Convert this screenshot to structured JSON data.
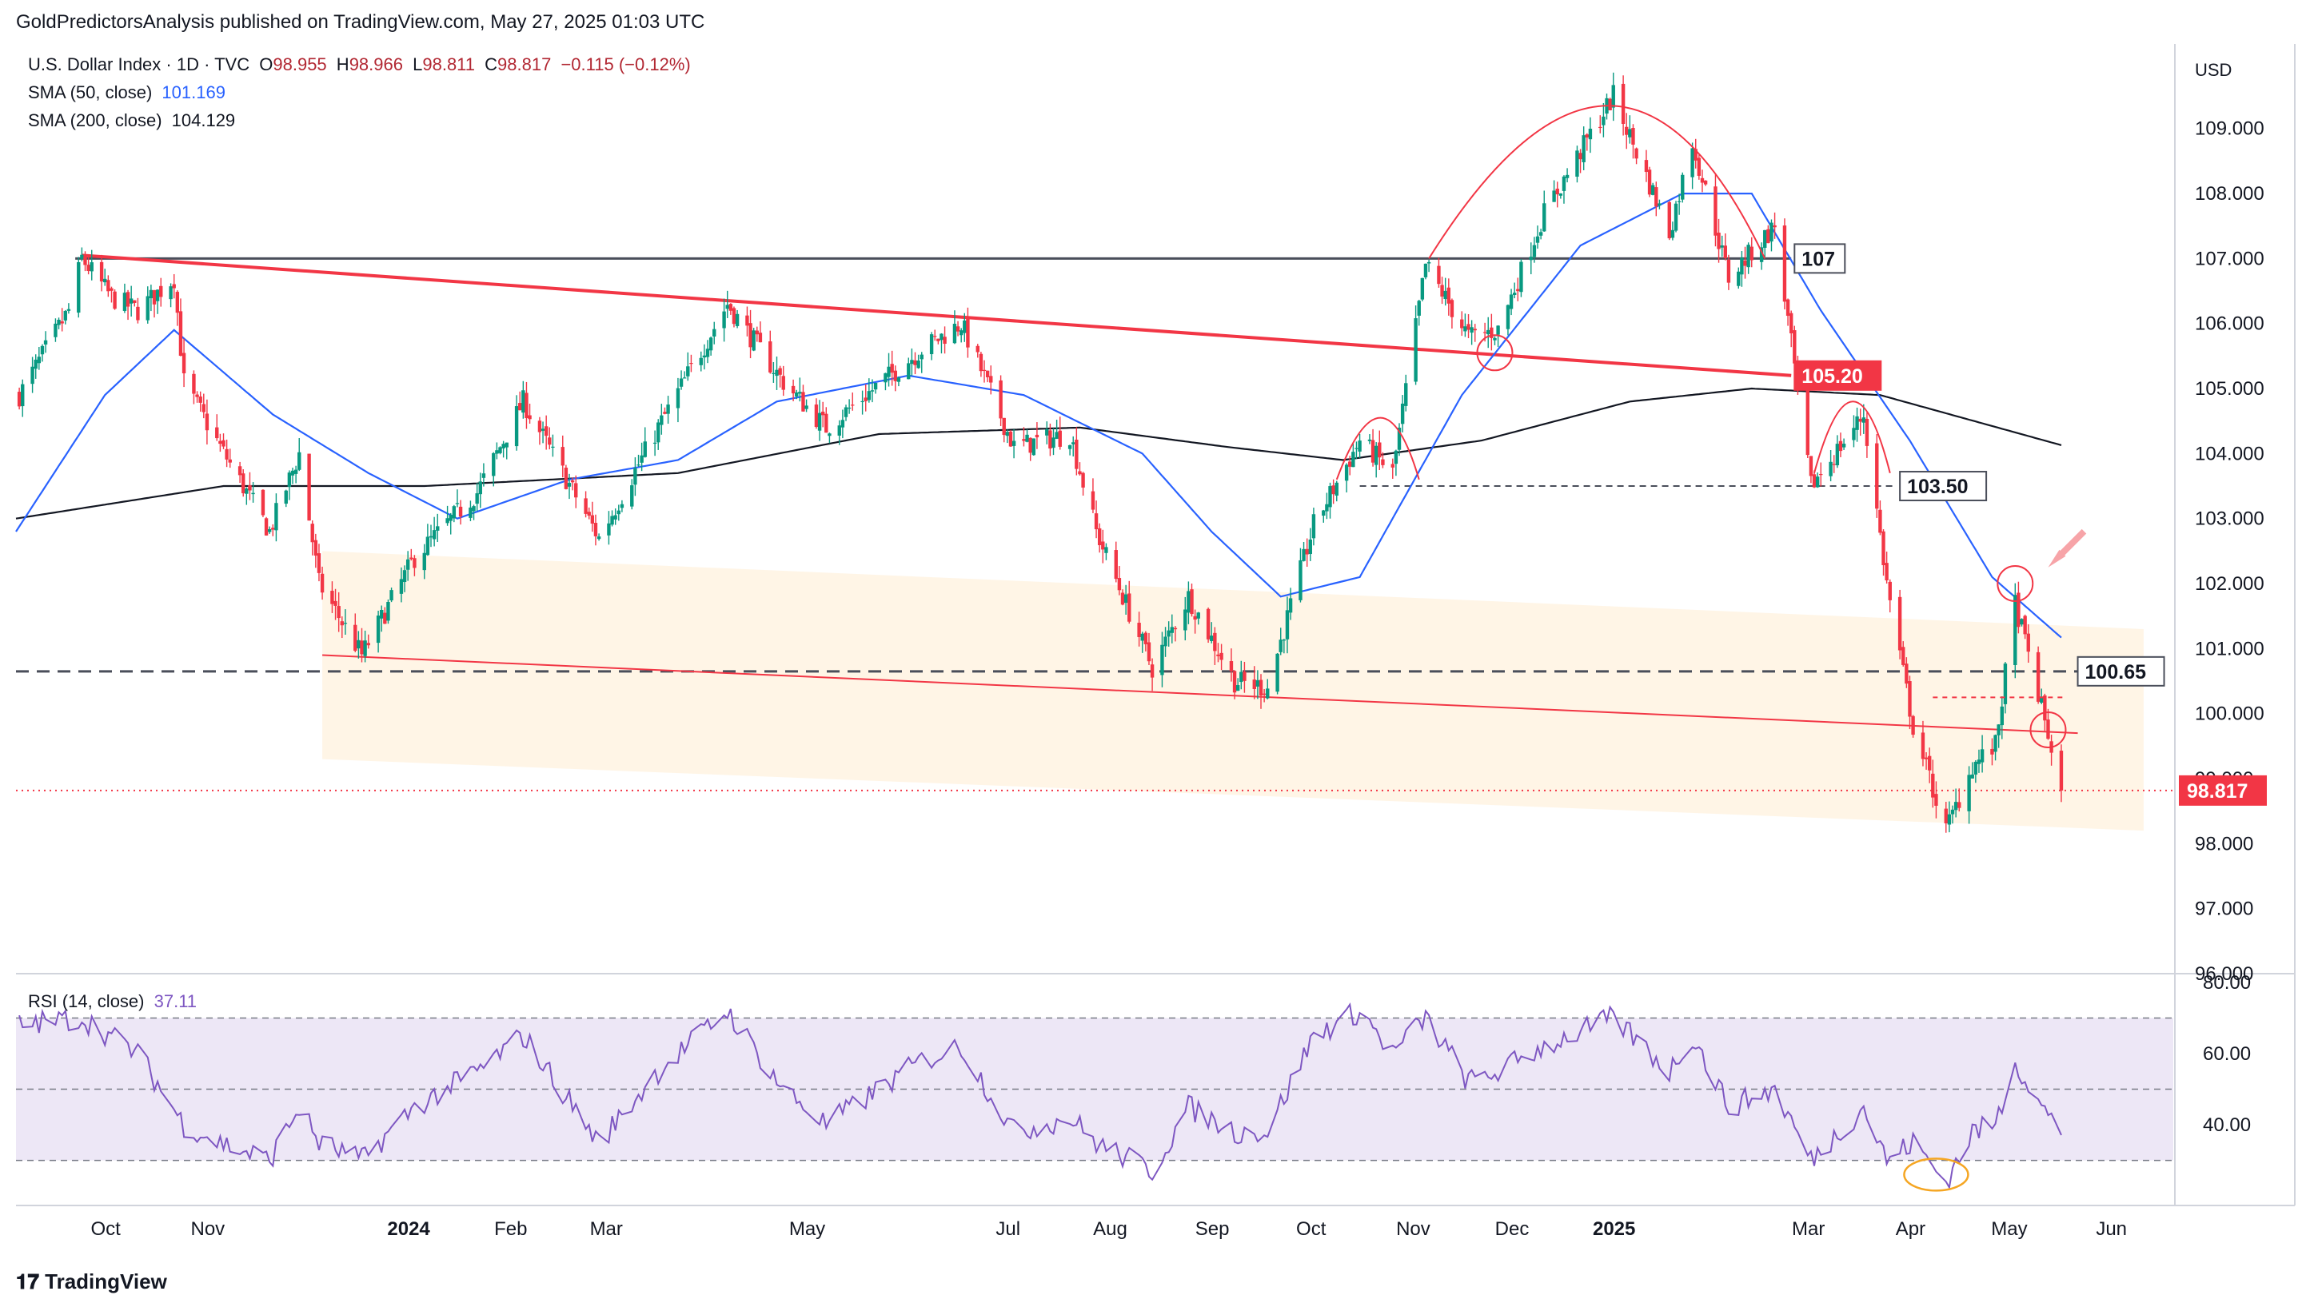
{
  "header": {
    "published_line": "GoldPredictorsAnalysis published on TradingView.com, May 27, 2025 01:03 UTC"
  },
  "legend": {
    "symbol": "U.S. Dollar Index · 1D · TVC",
    "o_label": "O",
    "o_value": "98.955",
    "h_label": "H",
    "h_value": "98.966",
    "l_label": "L",
    "l_value": "98.811",
    "c_label": "C",
    "c_value": "98.817",
    "change": "−0.115 (−0.12%)",
    "sma50_label": "SMA (50, close)",
    "sma50_value": "101.169",
    "sma200_label": "SMA (200, close)",
    "sma200_value": "104.129",
    "rsi_label": "RSI (14, close)",
    "rsi_value": "37.11"
  },
  "colors": {
    "up": "#089981",
    "down": "#f23645",
    "sma50": "#2962ff",
    "sma200": "#131722",
    "rsi": "#7e57c2",
    "rsi_band": "#ede7f6",
    "channel": "#fff3e0",
    "trend": "#f23645"
  },
  "price_labels": {
    "level_107": "107",
    "level_10520": "105.20",
    "level_10350": "103.50",
    "level_10065": "100.65",
    "last_price": "98.817"
  },
  "footer": {
    "brand": "TradingView"
  },
  "chart_data": [
    {
      "type": "candlestick",
      "title": "U.S. Dollar Index",
      "timeframe": "1D",
      "currency_label": "USD",
      "ylim": [
        96,
        110.3
      ],
      "y_ticks": [
        "109.000",
        "108.000",
        "107.000",
        "106.000",
        "105.000",
        "104.000",
        "103.000",
        "102.000",
        "101.000",
        "100.000",
        "99.000",
        "98.000",
        "97.000",
        "96.000"
      ],
      "x_ticks": [
        "Oct",
        "Nov",
        "2024",
        "Feb",
        "Mar",
        "May",
        "Jul",
        "Aug",
        "Sep",
        "Oct",
        "Nov",
        "Dec",
        "2025",
        "Mar",
        "Apr",
        "May",
        "Jun"
      ],
      "x_range": [
        "2023-09-13",
        "2025-06-29"
      ],
      "close_anchors": [
        {
          "date": "2023-09-14",
          "value": 104.9
        },
        {
          "date": "2023-09-29",
          "value": 106.2
        },
        {
          "date": "2023-10-03",
          "value": 107.0
        },
        {
          "date": "2023-10-12",
          "value": 106.4
        },
        {
          "date": "2023-10-20",
          "value": 106.2
        },
        {
          "date": "2023-10-31",
          "value": 106.7
        },
        {
          "date": "2023-11-03",
          "value": 105.1
        },
        {
          "date": "2023-11-14",
          "value": 104.1
        },
        {
          "date": "2023-11-29",
          "value": 102.8
        },
        {
          "date": "2023-12-08",
          "value": 104.0
        },
        {
          "date": "2023-12-14",
          "value": 102.0
        },
        {
          "date": "2023-12-27",
          "value": 100.9
        },
        {
          "date": "2024-01-12",
          "value": 102.4
        },
        {
          "date": "2024-01-31",
          "value": 103.4
        },
        {
          "date": "2024-02-14",
          "value": 104.8
        },
        {
          "date": "2024-03-08",
          "value": 102.7
        },
        {
          "date": "2024-03-26",
          "value": 104.4
        },
        {
          "date": "2024-04-16",
          "value": 106.3
        },
        {
          "date": "2024-05-03",
          "value": 105.1
        },
        {
          "date": "2024-05-16",
          "value": 104.4
        },
        {
          "date": "2024-06-14",
          "value": 105.6
        },
        {
          "date": "2024-06-26",
          "value": 106.0
        },
        {
          "date": "2024-07-12",
          "value": 104.1
        },
        {
          "date": "2024-07-29",
          "value": 104.3
        },
        {
          "date": "2024-08-06",
          "value": 102.8
        },
        {
          "date": "2024-08-23",
          "value": 100.7
        },
        {
          "date": "2024-09-03",
          "value": 101.8
        },
        {
          "date": "2024-09-17",
          "value": 100.5
        },
        {
          "date": "2024-09-27",
          "value": 100.4
        },
        {
          "date": "2024-10-11",
          "value": 102.9
        },
        {
          "date": "2024-10-25",
          "value": 104.2
        },
        {
          "date": "2024-11-04",
          "value": 103.7
        },
        {
          "date": "2024-11-14",
          "value": 106.9
        },
        {
          "date": "2024-11-27",
          "value": 105.8
        },
        {
          "date": "2024-12-06",
          "value": 105.9
        },
        {
          "date": "2024-12-20",
          "value": 107.7
        },
        {
          "date": "2025-01-10",
          "value": 109.5
        },
        {
          "date": "2025-01-27",
          "value": 107.4
        },
        {
          "date": "2025-02-03",
          "value": 108.8
        },
        {
          "date": "2025-02-14",
          "value": 106.7
        },
        {
          "date": "2025-02-28",
          "value": 107.5
        },
        {
          "date": "2025-03-11",
          "value": 103.5
        },
        {
          "date": "2025-03-27",
          "value": 104.6
        },
        {
          "date": "2025-04-03",
          "value": 102.0
        },
        {
          "date": "2025-04-11",
          "value": 99.8
        },
        {
          "date": "2025-04-21",
          "value": 98.2
        },
        {
          "date": "2025-04-29",
          "value": 99.2
        },
        {
          "date": "2025-05-06",
          "value": 99.5
        },
        {
          "date": "2025-05-12",
          "value": 101.7
        },
        {
          "date": "2025-05-20",
          "value": 100.1
        },
        {
          "date": "2025-05-26",
          "value": 98.817
        }
      ],
      "sma50_anchors": [
        {
          "date": "2023-09-13",
          "value": 102.8
        },
        {
          "date": "2023-10-10",
          "value": 104.9
        },
        {
          "date": "2023-10-31",
          "value": 105.9
        },
        {
          "date": "2023-11-30",
          "value": 104.6
        },
        {
          "date": "2023-12-29",
          "value": 103.7
        },
        {
          "date": "2024-01-25",
          "value": 103.0
        },
        {
          "date": "2024-02-28",
          "value": 103.6
        },
        {
          "date": "2024-04-01",
          "value": 103.9
        },
        {
          "date": "2024-05-01",
          "value": 104.8
        },
        {
          "date": "2024-06-10",
          "value": 105.2
        },
        {
          "date": "2024-07-15",
          "value": 104.9
        },
        {
          "date": "2024-08-20",
          "value": 104.0
        },
        {
          "date": "2024-09-10",
          "value": 102.8
        },
        {
          "date": "2024-10-01",
          "value": 101.8
        },
        {
          "date": "2024-10-25",
          "value": 102.1
        },
        {
          "date": "2024-11-25",
          "value": 104.9
        },
        {
          "date": "2024-12-31",
          "value": 107.2
        },
        {
          "date": "2025-01-31",
          "value": 108.0
        },
        {
          "date": "2025-02-21",
          "value": 108.0
        },
        {
          "date": "2025-03-14",
          "value": 106.2
        },
        {
          "date": "2025-04-10",
          "value": 104.2
        },
        {
          "date": "2025-05-05",
          "value": 102.1
        },
        {
          "date": "2025-05-26",
          "value": 101.169
        }
      ],
      "sma200_anchors": [
        {
          "date": "2023-09-13",
          "value": 103.0
        },
        {
          "date": "2023-11-15",
          "value": 103.5
        },
        {
          "date": "2024-01-15",
          "value": 103.5
        },
        {
          "date": "2024-04-01",
          "value": 103.7
        },
        {
          "date": "2024-06-01",
          "value": 104.3
        },
        {
          "date": "2024-08-01",
          "value": 104.4
        },
        {
          "date": "2024-09-15",
          "value": 104.1
        },
        {
          "date": "2024-10-20",
          "value": 103.9
        },
        {
          "date": "2024-12-01",
          "value": 104.2
        },
        {
          "date": "2025-01-15",
          "value": 104.8
        },
        {
          "date": "2025-02-21",
          "value": 105.0
        },
        {
          "date": "2025-04-01",
          "value": 104.9
        },
        {
          "date": "2025-05-26",
          "value": 104.129
        }
      ],
      "horizontal_levels": [
        107.0,
        103.5,
        100.65
      ],
      "trendline_red": {
        "from": {
          "date": "2023-10-03",
          "value": 107.05
        },
        "to": {
          "date": "2025-03-05",
          "value": 105.2
        }
      },
      "support_line_red": {
        "from": {
          "date": "2023-12-15",
          "value": 100.9
        },
        "to": {
          "date": "2025-05-31",
          "value": 99.7
        }
      },
      "channel": {
        "top": [
          {
            "date": "2023-12-15",
            "value": 102.5
          },
          {
            "date": "2025-06-20",
            "value": 101.3
          }
        ],
        "bottom": [
          {
            "date": "2023-12-15",
            "value": 99.3
          },
          {
            "date": "2025-06-20",
            "value": 98.2
          }
        ]
      },
      "last_price": 98.817
    },
    {
      "type": "line",
      "title": "RSI (14, close)",
      "ylim": [
        18,
        82
      ],
      "y_ticks": [
        "80.00",
        "60.00",
        "40.00"
      ],
      "bands": [
        70,
        50,
        30
      ],
      "rsi_anchors": [
        {
          "date": "2023-09-14",
          "value": 68
        },
        {
          "date": "2023-10-03",
          "value": 70
        },
        {
          "date": "2023-10-20",
          "value": 60
        },
        {
          "date": "2023-11-03",
          "value": 40
        },
        {
          "date": "2023-11-14",
          "value": 35
        },
        {
          "date": "2023-11-29",
          "value": 30
        },
        {
          "date": "2023-12-08",
          "value": 45
        },
        {
          "date": "2023-12-14",
          "value": 35
        },
        {
          "date": "2023-12-27",
          "value": 30
        },
        {
          "date": "2024-01-12",
          "value": 45
        },
        {
          "date": "2024-01-31",
          "value": 55
        },
        {
          "date": "2024-02-14",
          "value": 65
        },
        {
          "date": "2024-03-08",
          "value": 35
        },
        {
          "date": "2024-03-26",
          "value": 55
        },
        {
          "date": "2024-04-16",
          "value": 72
        },
        {
          "date": "2024-05-03",
          "value": 50
        },
        {
          "date": "2024-05-16",
          "value": 40
        },
        {
          "date": "2024-06-14",
          "value": 58
        },
        {
          "date": "2024-06-26",
          "value": 62
        },
        {
          "date": "2024-07-12",
          "value": 38
        },
        {
          "date": "2024-07-29",
          "value": 42
        },
        {
          "date": "2024-08-06",
          "value": 35
        },
        {
          "date": "2024-08-23",
          "value": 27
        },
        {
          "date": "2024-09-03",
          "value": 45
        },
        {
          "date": "2024-09-17",
          "value": 38
        },
        {
          "date": "2024-09-27",
          "value": 38
        },
        {
          "date": "2024-10-11",
          "value": 65
        },
        {
          "date": "2024-10-25",
          "value": 72
        },
        {
          "date": "2024-11-04",
          "value": 60
        },
        {
          "date": "2024-11-14",
          "value": 70
        },
        {
          "date": "2024-11-27",
          "value": 52
        },
        {
          "date": "2024-12-06",
          "value": 55
        },
        {
          "date": "2024-12-20",
          "value": 62
        },
        {
          "date": "2025-01-10",
          "value": 70
        },
        {
          "date": "2025-01-27",
          "value": 55
        },
        {
          "date": "2025-02-03",
          "value": 65
        },
        {
          "date": "2025-02-14",
          "value": 45
        },
        {
          "date": "2025-02-28",
          "value": 50
        },
        {
          "date": "2025-03-11",
          "value": 30
        },
        {
          "date": "2025-03-27",
          "value": 45
        },
        {
          "date": "2025-04-03",
          "value": 30
        },
        {
          "date": "2025-04-11",
          "value": 35
        },
        {
          "date": "2025-04-21",
          "value": 24
        },
        {
          "date": "2025-04-29",
          "value": 38
        },
        {
          "date": "2025-05-06",
          "value": 40
        },
        {
          "date": "2025-05-12",
          "value": 58
        },
        {
          "date": "2025-05-20",
          "value": 45
        },
        {
          "date": "2025-05-26",
          "value": 37.11
        }
      ],
      "last_value": 37.11
    }
  ]
}
